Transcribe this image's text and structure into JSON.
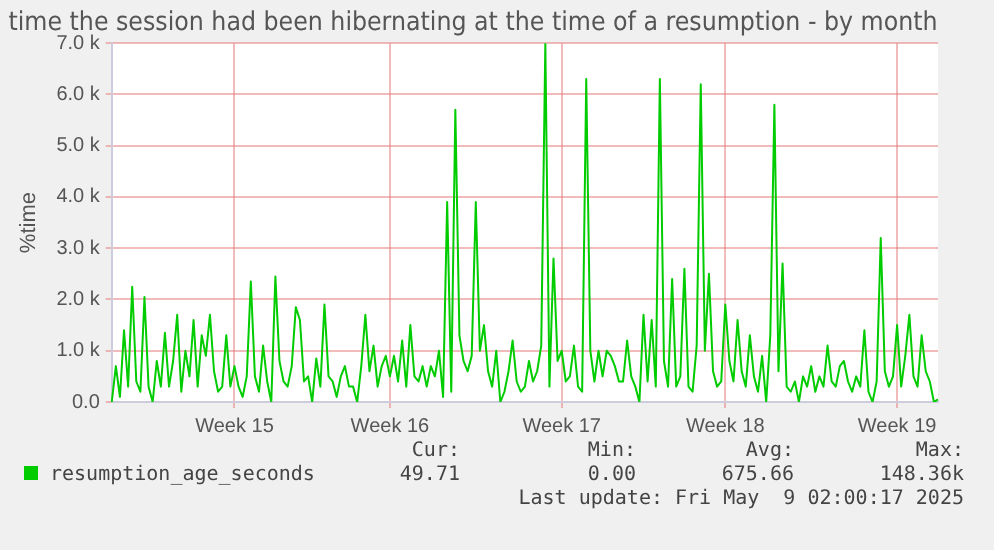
{
  "chart_data": {
    "type": "line",
    "title": "time the session had been hibernating at the time of a resumption - by month",
    "ylabel": "%time",
    "categories": [
      null,
      null,
      null,
      null,
      null,
      null,
      null,
      null,
      null,
      null,
      null,
      null,
      null,
      null,
      null,
      null,
      null,
      null,
      null,
      null,
      null,
      null,
      null,
      null,
      null,
      null,
      null,
      null,
      null,
      null,
      "Week 15",
      null,
      null,
      null,
      null,
      null,
      null,
      null,
      null,
      null,
      null,
      null,
      null,
      null,
      null,
      null,
      null,
      null,
      null,
      null,
      null,
      null,
      null,
      null,
      null,
      null,
      null,
      null,
      null,
      null,
      null,
      null,
      null,
      null,
      null,
      null,
      null,
      null,
      "Week 16",
      null,
      null,
      null,
      null,
      null,
      null,
      null,
      null,
      null,
      null,
      null,
      null,
      null,
      null,
      null,
      null,
      null,
      null,
      null,
      null,
      null,
      null,
      null,
      null,
      null,
      null,
      null,
      null,
      null,
      null,
      null,
      null,
      null,
      null,
      null,
      null,
      null,
      null,
      null,
      null,
      null,
      "Week 17",
      null,
      null,
      null,
      null,
      null,
      null,
      null,
      null,
      null,
      null,
      null,
      null,
      null,
      null,
      null,
      null,
      null,
      null,
      null,
      null,
      null,
      null,
      null,
      null,
      null,
      null,
      null,
      null,
      null,
      null,
      null,
      null,
      null,
      null,
      null,
      null,
      null,
      null,
      null,
      "Week 18",
      null,
      null,
      null,
      null,
      null,
      null,
      null,
      null,
      null,
      null,
      null,
      null,
      null,
      null,
      null,
      null,
      null,
      null,
      null,
      null,
      null,
      null,
      null,
      null,
      null,
      null,
      null,
      null,
      null,
      null,
      null,
      null,
      null,
      null,
      null,
      null,
      null,
      null,
      null,
      null,
      null,
      "Week 19",
      null,
      null,
      null,
      null,
      null,
      null,
      null,
      null,
      null,
      null
    ],
    "series": [
      {
        "name": "resumption_age_seconds",
        "color": "#00cc00",
        "values": [
          0,
          700,
          100,
          1400,
          300,
          2250,
          400,
          200,
          2050,
          300,
          0,
          800,
          300,
          1350,
          300,
          800,
          1700,
          200,
          1000,
          500,
          1600,
          300,
          1300,
          900,
          1700,
          600,
          200,
          300,
          1300,
          300,
          700,
          300,
          100,
          500,
          2350,
          500,
          200,
          1100,
          400,
          0,
          2450,
          800,
          400,
          300,
          700,
          1850,
          1600,
          400,
          500,
          0,
          850,
          300,
          1900,
          500,
          400,
          100,
          500,
          700,
          300,
          300,
          0,
          700,
          1700,
          600,
          1100,
          300,
          700,
          900,
          500,
          900,
          400,
          1200,
          300,
          1500,
          500,
          400,
          700,
          300,
          700,
          500,
          1000,
          100,
          3900,
          200,
          5700,
          1300,
          800,
          600,
          900,
          3900,
          1000,
          1500,
          600,
          300,
          1000,
          0,
          200,
          600,
          1200,
          400,
          200,
          300,
          800,
          400,
          600,
          1100,
          7000,
          300,
          2800,
          800,
          1000,
          400,
          500,
          1100,
          300,
          200,
          6300,
          1000,
          400,
          1000,
          500,
          1000,
          900,
          700,
          400,
          400,
          1200,
          500,
          300,
          0,
          1700,
          400,
          1600,
          300,
          6300,
          800,
          300,
          2400,
          300,
          500,
          2600,
          300,
          200,
          1100,
          6200,
          1000,
          2500,
          600,
          300,
          400,
          1900,
          800,
          400,
          1600,
          600,
          300,
          1300,
          500,
          200,
          900,
          0,
          1300,
          5800,
          600,
          2700,
          300,
          200,
          400,
          0,
          500,
          300,
          700,
          200,
          500,
          300,
          1100,
          400,
          300,
          700,
          800,
          400,
          200,
          500,
          300,
          1400,
          200,
          0,
          400,
          3200,
          600,
          300,
          500,
          1500,
          300,
          900,
          1700,
          500,
          300,
          1300,
          600,
          400,
          0,
          50
        ]
      }
    ],
    "ylim": [
      0,
      7000
    ],
    "yticks": [
      {
        "value": 0,
        "label": "0.0"
      },
      {
        "value": 1000,
        "label": "1.0 k"
      },
      {
        "value": 2000,
        "label": "2.0 k"
      },
      {
        "value": 3000,
        "label": "3.0 k"
      },
      {
        "value": 4000,
        "label": "4.0 k"
      },
      {
        "value": 5000,
        "label": "5.0 k"
      },
      {
        "value": 6000,
        "label": "6.0 k"
      },
      {
        "value": 7000,
        "label": "7.0 k"
      }
    ],
    "grid": true,
    "legend": "bottom left",
    "marker": "none",
    "line_style": "solid",
    "annotations": [
      "Cur:",
      "Min:",
      "Avg:",
      "Max:",
      "49.71",
      "0.00",
      "675.66",
      "148.36k",
      "Last update: Fri May  9 02:00:17 2025"
    ]
  }
}
